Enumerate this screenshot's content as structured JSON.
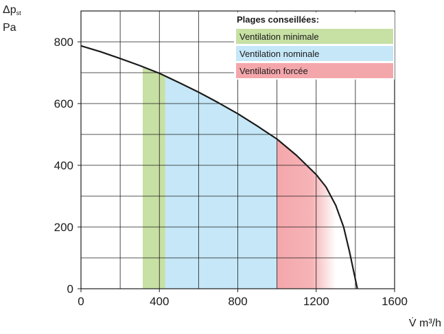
{
  "chart_data": {
    "type": "area",
    "title": "",
    "xlabel": "V̇ m³/h",
    "ylabel_line1": "Δp",
    "ylabel_sub": "st",
    "ylabel_line2": "Pa",
    "xlim": [
      0,
      1600
    ],
    "ylim": [
      0,
      900
    ],
    "x_ticks": [
      0,
      400,
      800,
      1200,
      1600
    ],
    "x_tick_labels": [
      "0",
      "400",
      "800",
      "1200",
      "1600"
    ],
    "y_ticks": [
      0,
      200,
      400,
      600,
      800
    ],
    "y_tick_labels": [
      "0",
      "200",
      "400",
      "600",
      "800"
    ],
    "grid_x_step": 200,
    "grid_y_step": 100,
    "grid": true,
    "legend_title": "Plages conseillées:",
    "legend_position": "top-right",
    "series": [
      {
        "name": "Ventilation minimale",
        "color": "#c7e0a4",
        "x_range": [
          315,
          430
        ]
      },
      {
        "name": "Ventilation nominale",
        "color": "#c5e7f7",
        "x_range": [
          430,
          1000
        ]
      },
      {
        "name": "Ventilation forcée",
        "color": "#f4a7ab",
        "x_range": [
          1000,
          1300
        ]
      }
    ],
    "curve": {
      "color": "#1a1a1a",
      "points": [
        [
          0,
          787
        ],
        [
          100,
          768
        ],
        [
          200,
          746
        ],
        [
          300,
          723
        ],
        [
          400,
          698
        ],
        [
          500,
          668
        ],
        [
          600,
          637
        ],
        [
          700,
          603
        ],
        [
          800,
          567
        ],
        [
          900,
          527
        ],
        [
          1000,
          485
        ],
        [
          1100,
          432
        ],
        [
          1200,
          370
        ],
        [
          1250,
          330
        ],
        [
          1300,
          270
        ],
        [
          1340,
          200
        ],
        [
          1370,
          120
        ],
        [
          1390,
          60
        ],
        [
          1410,
          0
        ]
      ]
    }
  }
}
